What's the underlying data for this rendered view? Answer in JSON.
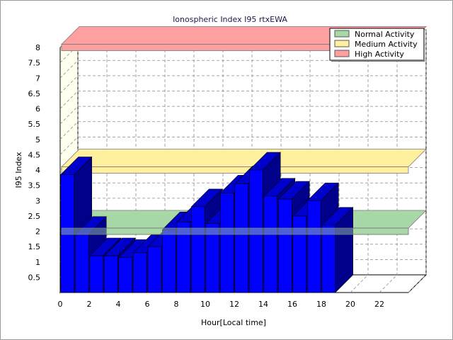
{
  "chart_data": {
    "type": "bar",
    "title": "Ionospheric Index I95 rtxEWA",
    "xlabel": "Hour[Local time]",
    "ylabel": "I95 Index",
    "xlim": [
      0,
      24
    ],
    "ylim": [
      0,
      8
    ],
    "x_ticks": [
      0,
      2,
      4,
      6,
      8,
      10,
      12,
      14,
      16,
      18,
      20,
      22
    ],
    "y_ticks": [
      0.5,
      1,
      1.5,
      2,
      2.5,
      3,
      3.5,
      4,
      4.5,
      5,
      5.5,
      6,
      6.5,
      7,
      7.5,
      8
    ],
    "grid": true,
    "legend_position": "top-right",
    "series": [
      {
        "x": [
          0,
          1,
          2,
          3,
          4,
          5,
          6,
          7,
          8,
          9,
          10,
          11,
          12,
          13,
          14,
          15,
          16,
          17,
          18
        ],
        "values": [
          3.85,
          1.9,
          1.2,
          1.2,
          1.15,
          1.3,
          1.5,
          2.05,
          2.3,
          2.8,
          2.25,
          3.25,
          3.55,
          4.0,
          3.15,
          3.05,
          2.5,
          3.0,
          2.2
        ],
        "color": "#0000ff"
      }
    ],
    "bands": [
      {
        "name": "Normal Activity",
        "from": 2.0,
        "to": 2.0,
        "color": "#a8d8a8"
      },
      {
        "name": "Medium Activity",
        "from": 4.0,
        "to": 4.0,
        "color": "#fff0a0"
      },
      {
        "name": "High Activity",
        "from": 8.0,
        "to": 8.0,
        "color": "#ffa0a0"
      }
    ]
  },
  "colors": {
    "bar_front": "#0000ff",
    "bar_side": "#00008b",
    "bar_top": "#0000cd",
    "wall": "#fffff0",
    "grid": "#8a8a8a"
  }
}
